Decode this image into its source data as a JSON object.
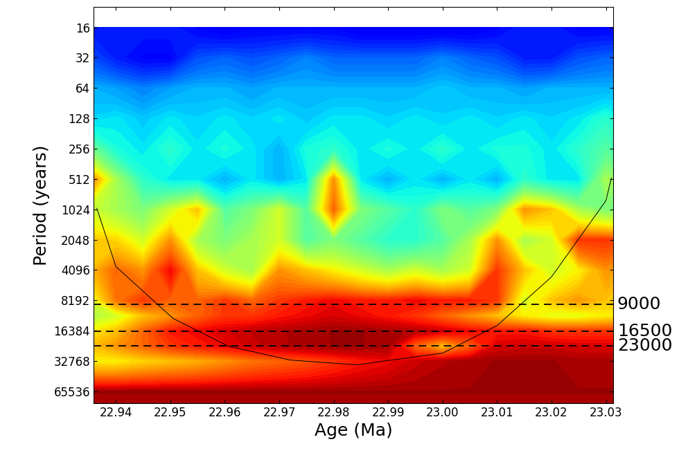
{
  "chart_data": {
    "type": "heatmap",
    "x_label": "Age (Ma)",
    "y_label": "Period (years)",
    "log": "y",
    "xlim": [
      22.9359,
      23.0313
    ],
    "ylim": [
      86000,
      10
    ],
    "xticks": [
      22.94,
      22.95,
      22.96,
      22.97,
      22.98,
      22.99,
      {
        "value": 23.0,
        "label": "23.00"
      },
      23.01,
      23.02,
      23.03
    ],
    "yticks": [
      16,
      32,
      64,
      128,
      256,
      512,
      1024,
      2048,
      4096,
      8192,
      16384,
      32768,
      65536
    ],
    "zlim": [
      0,
      1
    ],
    "x": [
      22.935,
      22.94,
      22.945,
      22.95,
      22.955,
      22.96,
      22.965,
      22.97,
      22.975,
      22.98,
      22.985,
      22.99,
      22.995,
      23.0,
      23.005,
      23.01,
      23.015,
      23.02,
      23.025,
      23.03,
      23.035
    ],
    "y": [
      8,
      16,
      32,
      64,
      128,
      256,
      512,
      1024,
      2048,
      4096,
      8192,
      11585,
      16384,
      23170,
      32768,
      65536,
      131072
    ],
    "cells": [
      [
        null,
        null,
        null,
        null,
        null,
        null,
        null,
        null,
        null,
        null,
        null,
        null,
        null,
        null,
        null,
        null,
        null,
        null,
        null,
        null,
        null
      ],
      [
        0.15,
        0.15,
        0.15,
        0.15,
        0.12,
        0.1,
        0.12,
        0.12,
        0.12,
        0.12,
        0.1,
        0.1,
        0.1,
        0.1,
        0.1,
        0.12,
        0.15,
        0.15,
        0.12,
        0.12,
        0.12
      ],
      [
        0.2,
        0.15,
        0.12,
        0.12,
        0.2,
        0.22,
        0.2,
        0.22,
        0.25,
        0.22,
        0.22,
        0.22,
        0.22,
        0.25,
        0.22,
        0.2,
        0.15,
        0.15,
        0.2,
        0.22,
        0.22
      ],
      [
        0.3,
        0.28,
        0.25,
        0.28,
        0.3,
        0.3,
        0.28,
        0.3,
        0.3,
        0.3,
        0.3,
        0.3,
        0.3,
        0.32,
        0.3,
        0.3,
        0.28,
        0.3,
        0.3,
        0.3,
        0.3
      ],
      [
        0.33,
        0.35,
        0.32,
        0.35,
        0.33,
        0.35,
        0.33,
        0.35,
        0.32,
        0.35,
        0.35,
        0.33,
        0.35,
        0.33,
        0.35,
        0.33,
        0.35,
        0.33,
        0.35,
        0.4,
        0.35
      ],
      [
        0.5,
        0.38,
        0.35,
        0.4,
        0.35,
        0.38,
        0.35,
        0.3,
        0.38,
        0.4,
        0.35,
        0.38,
        0.35,
        0.4,
        0.35,
        0.38,
        0.38,
        0.35,
        0.4,
        0.45,
        0.4
      ],
      [
        0.8,
        0.55,
        0.4,
        0.35,
        0.35,
        0.3,
        0.35,
        0.3,
        0.35,
        0.75,
        0.35,
        0.3,
        0.35,
        0.3,
        0.35,
        0.3,
        0.4,
        0.35,
        0.35,
        0.55,
        0.5
      ],
      [
        0.6,
        0.55,
        0.5,
        0.6,
        0.7,
        0.45,
        0.5,
        0.6,
        0.45,
        0.8,
        0.5,
        0.45,
        0.4,
        0.5,
        0.45,
        0.5,
        0.75,
        0.7,
        0.55,
        0.5,
        0.5
      ],
      [
        0.7,
        0.68,
        0.6,
        0.75,
        0.55,
        0.5,
        0.55,
        0.6,
        0.45,
        0.5,
        0.45,
        0.4,
        0.4,
        0.45,
        0.55,
        0.75,
        0.55,
        0.6,
        0.85,
        0.85,
        0.8
      ],
      [
        0.7,
        0.8,
        0.75,
        0.9,
        0.7,
        0.6,
        0.55,
        0.75,
        0.7,
        0.65,
        0.6,
        0.55,
        0.6,
        0.55,
        0.6,
        0.85,
        0.7,
        0.6,
        0.65,
        0.75,
        0.7
      ],
      [
        0.6,
        0.78,
        0.85,
        0.8,
        0.8,
        0.85,
        0.8,
        0.85,
        0.88,
        0.9,
        0.88,
        0.88,
        0.9,
        0.88,
        0.88,
        0.85,
        0.6,
        0.7,
        0.75,
        0.7,
        0.7
      ],
      [
        0.55,
        0.6,
        0.7,
        0.75,
        0.8,
        0.85,
        0.85,
        0.88,
        0.9,
        0.92,
        0.9,
        0.88,
        0.85,
        0.8,
        0.75,
        0.7,
        0.65,
        0.62,
        0.62,
        0.65,
        0.65
      ],
      [
        0.65,
        0.7,
        0.8,
        0.88,
        0.9,
        0.92,
        0.94,
        0.95,
        0.96,
        0.97,
        0.97,
        0.96,
        0.95,
        0.93,
        0.9,
        0.88,
        0.88,
        0.85,
        0.85,
        0.85,
        0.85
      ],
      [
        0.7,
        0.75,
        0.8,
        0.85,
        0.88,
        0.9,
        0.93,
        0.95,
        0.96,
        0.97,
        0.97,
        0.96,
        0.8,
        0.7,
        0.8,
        0.92,
        0.93,
        0.93,
        0.92,
        0.92,
        0.92
      ],
      [
        0.65,
        0.65,
        0.68,
        0.7,
        0.72,
        0.75,
        0.78,
        0.8,
        0.82,
        0.85,
        0.88,
        0.9,
        0.93,
        0.95,
        0.96,
        0.97,
        0.97,
        0.97,
        0.96,
        0.96,
        0.96
      ],
      [
        0.97,
        0.97,
        0.97,
        0.97,
        0.97,
        0.97,
        0.97,
        0.97,
        0.97,
        0.97,
        0.97,
        0.97,
        0.97,
        0.97,
        0.97,
        0.97,
        0.97,
        0.97,
        0.97,
        0.97,
        0.97
      ],
      [
        0.95,
        0.95,
        0.95,
        0.95,
        0.95,
        0.95,
        0.95,
        0.95,
        0.95,
        0.95,
        0.95,
        0.95,
        0.95,
        0.95,
        0.95,
        0.95,
        0.95,
        0.95,
        0.95,
        0.95,
        0.95
      ]
    ],
    "cone_of_influence": {
      "x": [
        22.9365,
        22.94,
        22.9505,
        22.9607,
        22.972,
        22.9842,
        23.0,
        23.01,
        23.02,
        23.03,
        23.031
      ],
      "y": [
        1000,
        3790,
        12400,
        23400,
        32100,
        35800,
        27400,
        14600,
        4800,
        840,
        500
      ]
    },
    "hlines": [
      {
        "value": 9000,
        "label": "9000"
      },
      {
        "value": 16500,
        "label": "16500"
      },
      {
        "value": 23000,
        "label": "23000"
      }
    ]
  }
}
